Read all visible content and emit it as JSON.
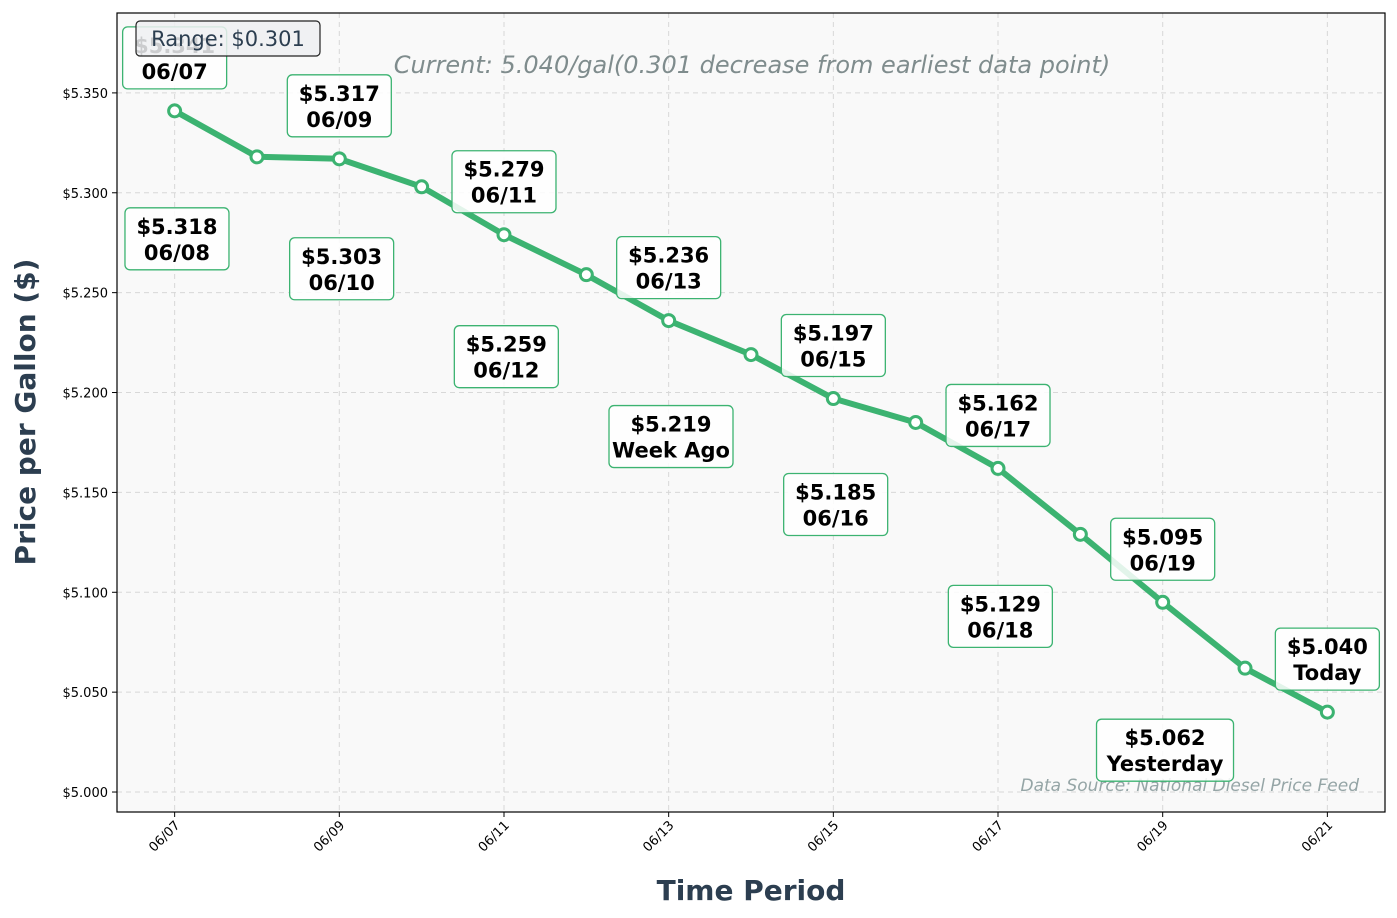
{
  "chart_data": {
    "type": "line",
    "xlabel": "Time Period",
    "ylabel": "Price per Gallon ($)",
    "subtitle": "Current: 5.040/gal(0.301 decrease from earliest data point)",
    "range_label": "Range: $0.301",
    "source_note": "Data Source: National Diesel Price Feed",
    "x_ticks": [
      "06/07",
      "06/09",
      "06/11",
      "06/13",
      "06/15",
      "06/17",
      "06/19",
      "06/21"
    ],
    "y_ticks": [
      "$5.000",
      "$5.050",
      "$5.100",
      "$5.150",
      "$5.200",
      "$5.250",
      "$5.300",
      "$5.350"
    ],
    "y_tick_values": [
      5.0,
      5.05,
      5.1,
      5.15,
      5.2,
      5.25,
      5.3,
      5.35
    ],
    "ylim": [
      4.99,
      5.39
    ],
    "xlim": [
      -0.7,
      14.7
    ],
    "grid": true,
    "line_color": "#3cb371",
    "points": [
      {
        "date": "06/07",
        "value": 5.341,
        "price_label": "$5.341",
        "date_label": "06/07"
      },
      {
        "date": "06/08",
        "value": 5.318,
        "price_label": "$5.318",
        "date_label": "06/08"
      },
      {
        "date": "06/09",
        "value": 5.317,
        "price_label": "$5.317",
        "date_label": "06/09"
      },
      {
        "date": "06/10",
        "value": 5.303,
        "price_label": "$5.303",
        "date_label": "06/10"
      },
      {
        "date": "06/11",
        "value": 5.279,
        "price_label": "$5.279",
        "date_label": "06/11"
      },
      {
        "date": "06/12",
        "value": 5.259,
        "price_label": "$5.259",
        "date_label": "06/12"
      },
      {
        "date": "06/13",
        "value": 5.236,
        "price_label": "$5.236",
        "date_label": "06/13"
      },
      {
        "date": "06/14",
        "value": 5.219,
        "price_label": "$5.219",
        "date_label": "Week Ago"
      },
      {
        "date": "06/15",
        "value": 5.197,
        "price_label": "$5.197",
        "date_label": "06/15"
      },
      {
        "date": "06/16",
        "value": 5.185,
        "price_label": "$5.185",
        "date_label": "06/16"
      },
      {
        "date": "06/17",
        "value": 5.162,
        "price_label": "$5.162",
        "date_label": "06/17"
      },
      {
        "date": "06/18",
        "value": 5.129,
        "price_label": "$5.129",
        "date_label": "06/18"
      },
      {
        "date": "06/19",
        "value": 5.095,
        "price_label": "$5.095",
        "date_label": "06/19"
      },
      {
        "date": "06/20",
        "value": 5.062,
        "price_label": "$5.062",
        "date_label": "Yesterday"
      },
      {
        "date": "06/21",
        "value": 5.04,
        "price_label": "$5.040",
        "date_label": "Today"
      }
    ]
  }
}
